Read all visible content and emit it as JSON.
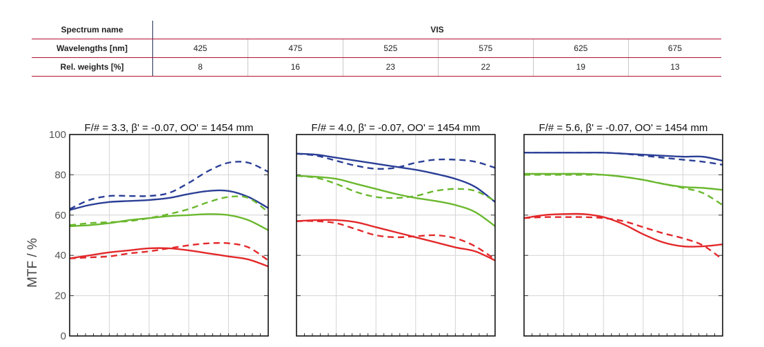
{
  "table": {
    "row_spectrum": {
      "label": "Spectrum name",
      "value": "VIS"
    },
    "row_wavelengths": {
      "label": "Wavelengths [nm]",
      "values": [
        "425",
        "475",
        "525",
        "575",
        "625",
        "675"
      ]
    },
    "row_weights": {
      "label": "Rel. weights [%]",
      "values": [
        "8",
        "16",
        "23",
        "22",
        "19",
        "13"
      ]
    }
  },
  "colors": {
    "blue": "#2b3f96",
    "green": "#6ab82e",
    "red": "#e3282a",
    "table_rule": "#b01030"
  },
  "chart_data": [
    {
      "type": "line",
      "title": "F/# = 3.3, β' = -0.07, OO' = 1454 mm",
      "ylabel": "MTF / %",
      "ylim": [
        0,
        100
      ],
      "yticks": [
        "0",
        "20",
        "40",
        "60",
        "80",
        "100"
      ],
      "xlim": [
        0,
        1
      ],
      "grid": true,
      "series": [
        {
          "color": "blue",
          "style": "solid",
          "x": [
            0,
            0.1,
            0.2,
            0.3,
            0.4,
            0.5,
            0.6,
            0.7,
            0.8,
            0.9,
            1.0
          ],
          "values": [
            62.5,
            65,
            66.5,
            67,
            67.5,
            68.5,
            70.5,
            72,
            72,
            69,
            63.5
          ]
        },
        {
          "color": "blue",
          "style": "dashed",
          "x": [
            0,
            0.1,
            0.2,
            0.3,
            0.4,
            0.5,
            0.6,
            0.7,
            0.8,
            0.9,
            1.0
          ],
          "values": [
            63,
            67.5,
            69.5,
            69.5,
            69.5,
            71,
            76,
            82,
            86,
            86,
            81.5
          ]
        },
        {
          "color": "green",
          "style": "solid",
          "x": [
            0,
            0.1,
            0.2,
            0.3,
            0.4,
            0.5,
            0.6,
            0.7,
            0.8,
            0.9,
            1.0
          ],
          "values": [
            54.5,
            55,
            56,
            57.5,
            58.5,
            59.5,
            60,
            60.5,
            60,
            57.5,
            52.5
          ]
        },
        {
          "color": "green",
          "style": "dashed",
          "x": [
            0,
            0.1,
            0.2,
            0.3,
            0.4,
            0.5,
            0.6,
            0.7,
            0.8,
            0.9,
            1.0
          ],
          "values": [
            55,
            56,
            56.5,
            57,
            58.5,
            60.5,
            63,
            66.5,
            69,
            68.5,
            61.5
          ]
        },
        {
          "color": "red",
          "style": "solid",
          "x": [
            0,
            0.1,
            0.2,
            0.3,
            0.4,
            0.5,
            0.6,
            0.7,
            0.8,
            0.9,
            1.0
          ],
          "values": [
            38.5,
            40,
            41.5,
            42.5,
            43.5,
            43.5,
            42.5,
            41,
            39.5,
            38,
            34.5
          ]
        },
        {
          "color": "red",
          "style": "dashed",
          "x": [
            0,
            0.1,
            0.2,
            0.3,
            0.4,
            0.5,
            0.6,
            0.7,
            0.8,
            0.9,
            1.0
          ],
          "values": [
            38.5,
            39,
            39.5,
            41,
            42,
            43.5,
            45,
            46,
            46,
            44,
            37.5
          ]
        }
      ]
    },
    {
      "type": "line",
      "title": "F/# = 4.0, β' = -0.07, OO' = 1454 mm",
      "ylim": [
        0,
        100
      ],
      "xlim": [
        0,
        1
      ],
      "grid": true,
      "series": [
        {
          "color": "blue",
          "style": "solid",
          "x": [
            0,
            0.1,
            0.2,
            0.3,
            0.4,
            0.5,
            0.6,
            0.7,
            0.8,
            0.9,
            1.0
          ],
          "values": [
            90.5,
            90,
            88.5,
            87,
            85.5,
            84,
            82.5,
            80.5,
            78,
            74,
            66.5
          ]
        },
        {
          "color": "blue",
          "style": "dashed",
          "x": [
            0,
            0.1,
            0.2,
            0.3,
            0.4,
            0.5,
            0.6,
            0.7,
            0.8,
            0.9,
            1.0
          ],
          "values": [
            90.5,
            89.5,
            87,
            84.5,
            83,
            83.5,
            86,
            87.5,
            87.5,
            86.5,
            83.5
          ]
        },
        {
          "color": "green",
          "style": "solid",
          "x": [
            0,
            0.1,
            0.2,
            0.3,
            0.4,
            0.5,
            0.6,
            0.7,
            0.8,
            0.9,
            1.0
          ],
          "values": [
            79.5,
            79,
            78,
            75.5,
            73,
            70.5,
            68.5,
            67,
            65,
            61.5,
            54.5
          ]
        },
        {
          "color": "green",
          "style": "dashed",
          "x": [
            0,
            0.1,
            0.2,
            0.3,
            0.4,
            0.5,
            0.6,
            0.7,
            0.8,
            0.9,
            1.0
          ],
          "values": [
            79.5,
            78.5,
            75.5,
            71.5,
            69,
            68.5,
            69.5,
            72,
            73,
            72,
            67
          ]
        },
        {
          "color": "red",
          "style": "solid",
          "x": [
            0,
            0.1,
            0.2,
            0.3,
            0.4,
            0.5,
            0.6,
            0.7,
            0.8,
            0.9,
            1.0
          ],
          "values": [
            57,
            57.5,
            57.5,
            56.5,
            54,
            51.5,
            49,
            46.5,
            44,
            42,
            37.5
          ]
        },
        {
          "color": "red",
          "style": "dashed",
          "x": [
            0,
            0.1,
            0.2,
            0.3,
            0.4,
            0.5,
            0.6,
            0.7,
            0.8,
            0.9,
            1.0
          ],
          "values": [
            57,
            57,
            56,
            53,
            50,
            49,
            49.5,
            50,
            48.5,
            44.5,
            38
          ]
        }
      ]
    },
    {
      "type": "line",
      "title": "F/# = 5.6, β' = -0.07, OO' = 1454 mm",
      "ylim": [
        0,
        100
      ],
      "xlim": [
        0,
        1
      ],
      "grid": true,
      "series": [
        {
          "color": "blue",
          "style": "solid",
          "x": [
            0,
            0.1,
            0.2,
            0.3,
            0.4,
            0.5,
            0.6,
            0.7,
            0.8,
            0.9,
            1.0
          ],
          "values": [
            91,
            91,
            91,
            91,
            91,
            90.5,
            90,
            89.5,
            89,
            89,
            87
          ]
        },
        {
          "color": "blue",
          "style": "dashed",
          "x": [
            0,
            0.1,
            0.2,
            0.3,
            0.4,
            0.5,
            0.6,
            0.7,
            0.8,
            0.9,
            1.0
          ],
          "values": [
            91,
            91,
            91,
            91,
            91,
            90.5,
            89.5,
            88.5,
            87.5,
            86.5,
            85
          ]
        },
        {
          "color": "green",
          "style": "solid",
          "x": [
            0,
            0.1,
            0.2,
            0.3,
            0.4,
            0.5,
            0.6,
            0.7,
            0.8,
            0.9,
            1.0
          ],
          "values": [
            80.5,
            80.5,
            80.5,
            80.5,
            80,
            79,
            77.5,
            75.5,
            74,
            73.5,
            72.5
          ]
        },
        {
          "color": "green",
          "style": "dashed",
          "x": [
            0,
            0.1,
            0.2,
            0.3,
            0.4,
            0.5,
            0.6,
            0.7,
            0.8,
            0.9,
            1.0
          ],
          "values": [
            80,
            80,
            80,
            80,
            80,
            79,
            77.5,
            75.5,
            73.5,
            71,
            65
          ]
        },
        {
          "color": "red",
          "style": "solid",
          "x": [
            0,
            0.1,
            0.2,
            0.3,
            0.4,
            0.5,
            0.6,
            0.7,
            0.8,
            0.9,
            1.0
          ],
          "values": [
            58.5,
            60,
            60.5,
            60.5,
            59,
            55.5,
            50.5,
            46.5,
            44.5,
            44.5,
            45.5
          ]
        },
        {
          "color": "red",
          "style": "dashed",
          "x": [
            0,
            0.1,
            0.2,
            0.3,
            0.4,
            0.5,
            0.6,
            0.7,
            0.8,
            0.9,
            1.0
          ],
          "values": [
            58.5,
            59,
            59,
            59,
            58.5,
            57,
            54,
            51,
            48.5,
            45,
            38
          ]
        }
      ]
    }
  ]
}
